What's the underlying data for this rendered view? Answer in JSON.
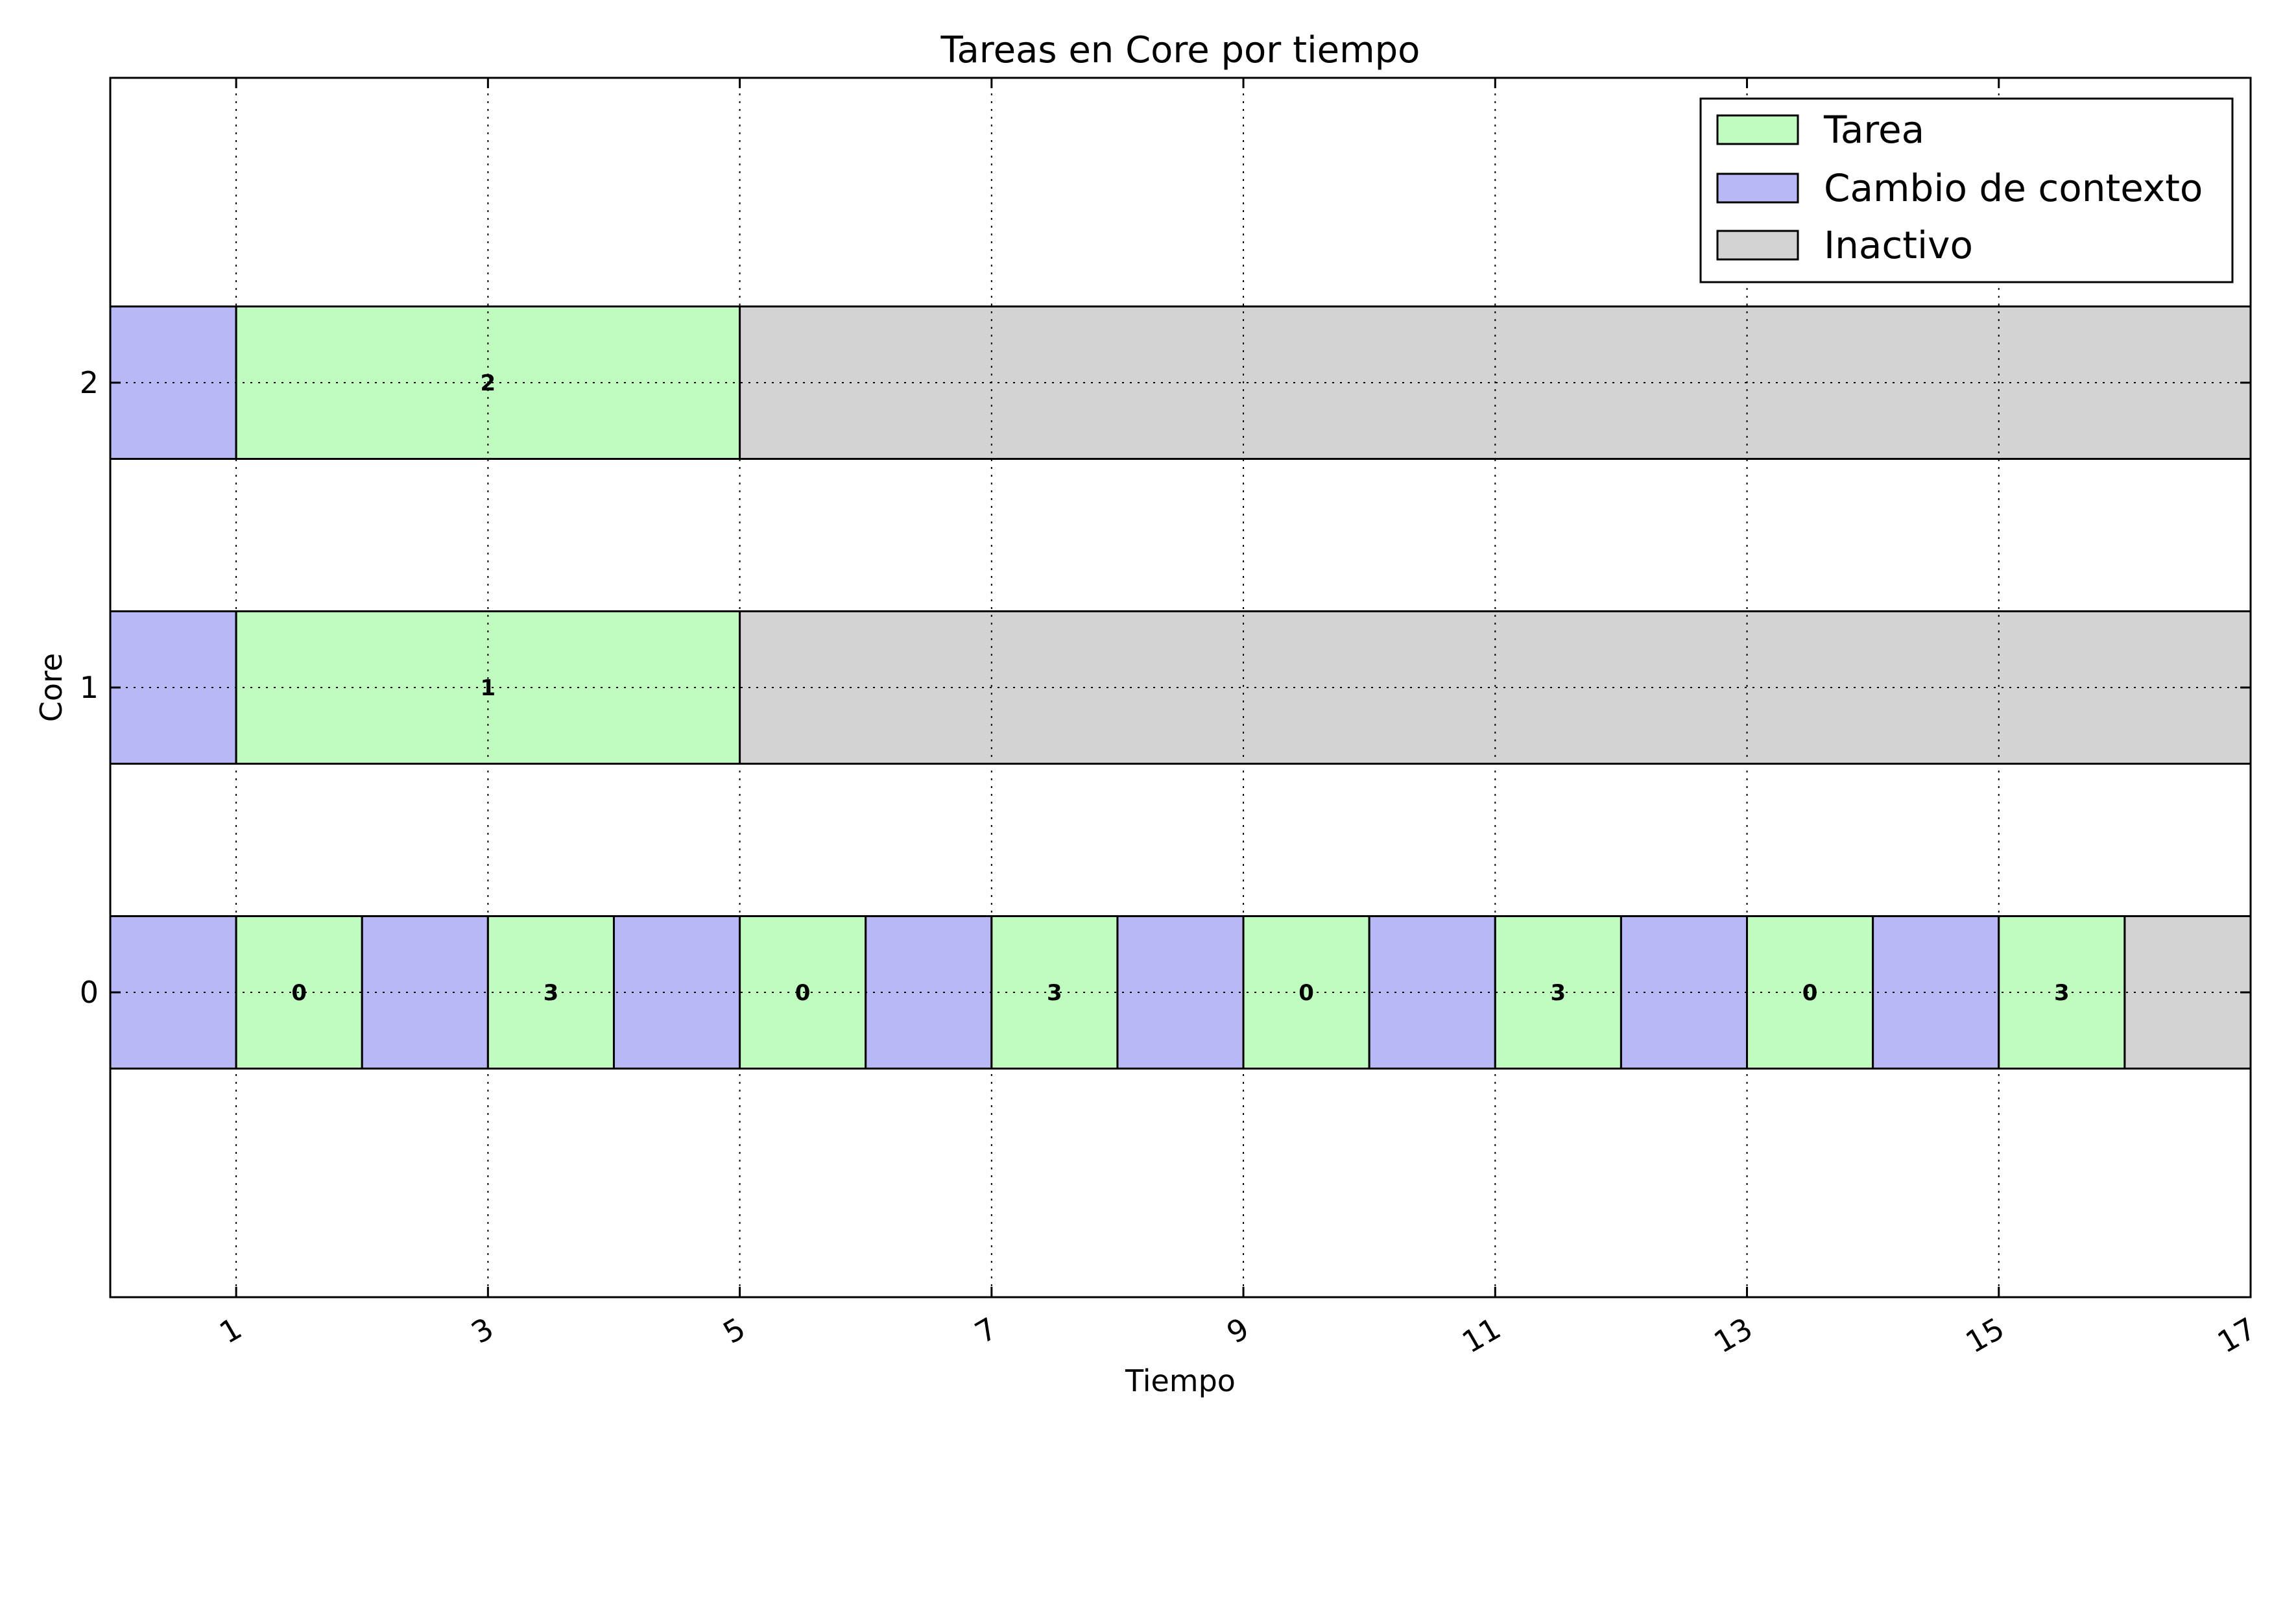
{
  "chart_data": {
    "type": "gantt",
    "title": "Tareas en Core por tiempo",
    "xlabel": "Tiempo",
    "ylabel": "Core",
    "xlim": [
      0,
      17
    ],
    "ylim": [
      -1,
      3
    ],
    "xticks": [
      "1",
      "3",
      "5",
      "7",
      "9",
      "11",
      "13",
      "15",
      "17"
    ],
    "xtick_values": [
      1,
      3,
      5,
      7,
      9,
      11,
      13,
      15,
      17
    ],
    "yticks": [
      "0",
      "1",
      "2"
    ],
    "ytick_values": [
      0,
      1,
      2
    ],
    "grid": true,
    "legend_position": "top-right",
    "legend": [
      {
        "key": "tarea",
        "label": "Tarea"
      },
      {
        "key": "cambio",
        "label": "Cambio de contexto"
      },
      {
        "key": "inactivo",
        "label": "Inactivo"
      }
    ],
    "colors": {
      "tarea": "#c0fcc0",
      "cambio": "#b8b8f6",
      "inactivo": "#d3d3d3"
    },
    "cores": [
      {
        "core": 0,
        "segments": [
          {
            "start": 0,
            "end": 1,
            "kind": "cambio",
            "label": ""
          },
          {
            "start": 1,
            "end": 2,
            "kind": "tarea",
            "label": "0"
          },
          {
            "start": 2,
            "end": 3,
            "kind": "cambio",
            "label": ""
          },
          {
            "start": 3,
            "end": 4,
            "kind": "tarea",
            "label": "3"
          },
          {
            "start": 4,
            "end": 5,
            "kind": "cambio",
            "label": ""
          },
          {
            "start": 5,
            "end": 6,
            "kind": "tarea",
            "label": "0"
          },
          {
            "start": 6,
            "end": 7,
            "kind": "cambio",
            "label": ""
          },
          {
            "start": 7,
            "end": 8,
            "kind": "tarea",
            "label": "3"
          },
          {
            "start": 8,
            "end": 9,
            "kind": "cambio",
            "label": ""
          },
          {
            "start": 9,
            "end": 10,
            "kind": "tarea",
            "label": "0"
          },
          {
            "start": 10,
            "end": 11,
            "kind": "cambio",
            "label": ""
          },
          {
            "start": 11,
            "end": 12,
            "kind": "tarea",
            "label": "3"
          },
          {
            "start": 12,
            "end": 13,
            "kind": "cambio",
            "label": ""
          },
          {
            "start": 13,
            "end": 14,
            "kind": "tarea",
            "label": "0"
          },
          {
            "start": 14,
            "end": 15,
            "kind": "cambio",
            "label": ""
          },
          {
            "start": 15,
            "end": 16,
            "kind": "tarea",
            "label": "3"
          },
          {
            "start": 16,
            "end": 17,
            "kind": "inactivo",
            "label": ""
          }
        ]
      },
      {
        "core": 1,
        "segments": [
          {
            "start": 0,
            "end": 1,
            "kind": "cambio",
            "label": ""
          },
          {
            "start": 1,
            "end": 5,
            "kind": "tarea",
            "label": "1"
          },
          {
            "start": 5,
            "end": 17,
            "kind": "inactivo",
            "label": ""
          }
        ]
      },
      {
        "core": 2,
        "segments": [
          {
            "start": 0,
            "end": 1,
            "kind": "cambio",
            "label": ""
          },
          {
            "start": 1,
            "end": 5,
            "kind": "tarea",
            "label": "2"
          },
          {
            "start": 5,
            "end": 17,
            "kind": "inactivo",
            "label": ""
          }
        ]
      }
    ]
  }
}
